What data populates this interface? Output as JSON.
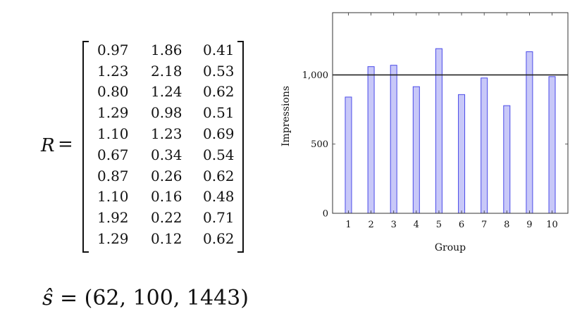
{
  "matrix": {
    "symbol": "R",
    "equals": "=",
    "rows": [
      [
        "0.97",
        "1.86",
        "0.41"
      ],
      [
        "1.23",
        "2.18",
        "0.53"
      ],
      [
        "0.80",
        "1.24",
        "0.62"
      ],
      [
        "1.29",
        "0.98",
        "0.51"
      ],
      [
        "1.10",
        "1.23",
        "0.69"
      ],
      [
        "0.67",
        "0.34",
        "0.54"
      ],
      [
        "0.87",
        "0.26",
        "0.62"
      ],
      [
        "1.10",
        "0.16",
        "0.48"
      ],
      [
        "1.92",
        "0.22",
        "0.71"
      ],
      [
        "1.29",
        "0.12",
        "0.62"
      ]
    ]
  },
  "shat": {
    "symbol": "ŝ",
    "rhs": " = (62, 100, 1443)"
  },
  "chart_data": {
    "type": "bar",
    "xlabel": "Group",
    "ylabel": "Impressions",
    "categories": [
      "1",
      "2",
      "3",
      "4",
      "5",
      "6",
      "7",
      "8",
      "9",
      "10"
    ],
    "values": [
      840,
      1060,
      1070,
      915,
      1190,
      858,
      978,
      778,
      1168,
      988
    ],
    "reference_line": 1000,
    "ylim": [
      0,
      1450
    ],
    "yticks": [
      0,
      500,
      1000
    ],
    "ytick_labels": [
      "0",
      "500",
      "1,000"
    ],
    "bar_fill": "#c8c8f8",
    "bar_stroke": "#4a4ae8",
    "grid": false
  }
}
